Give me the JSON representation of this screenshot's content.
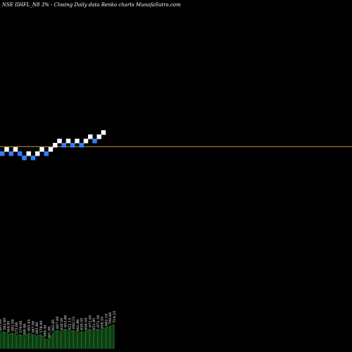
{
  "chart_data": {
    "type": "renko",
    "title": "NSE IIHFL_N8  3% -  Closing Daily data  Renko  charts MunafaSutra.com",
    "colors": {
      "up_brick": "#ffffff",
      "down_brick": "#2f7fff",
      "reference_line": "#c99a2e",
      "volume_bar": "#0d3b12",
      "volume_edge": "#1f7a2c",
      "background": "#000000"
    },
    "bricks": [
      {
        "dir": "down",
        "level": 0
      },
      {
        "dir": "up",
        "level": 1
      },
      {
        "dir": "down",
        "level": 0
      },
      {
        "dir": "up",
        "level": 1
      },
      {
        "dir": "down",
        "level": 0
      },
      {
        "dir": "down",
        "level": -1
      },
      {
        "dir": "up",
        "level": 0
      },
      {
        "dir": "down",
        "level": -1
      },
      {
        "dir": "up",
        "level": 0
      },
      {
        "dir": "up",
        "level": 1
      },
      {
        "dir": "down",
        "level": 0
      },
      {
        "dir": "up",
        "level": 1
      },
      {
        "dir": "up",
        "level": 2
      },
      {
        "dir": "up",
        "level": 3
      },
      {
        "dir": "down",
        "level": 2
      },
      {
        "dir": "up",
        "level": 3
      },
      {
        "dir": "down",
        "level": 2
      },
      {
        "dir": "up",
        "level": 3
      },
      {
        "dir": "down",
        "level": 2
      },
      {
        "dir": "up",
        "level": 3
      },
      {
        "dir": "up",
        "level": 4
      },
      {
        "dir": "down",
        "level": 3
      },
      {
        "dir": "up",
        "level": 4
      },
      {
        "dir": "up",
        "level": 5
      }
    ],
    "reference_level": 1.2,
    "volume_labels": [
      "561.00",
      "563.60",
      "564.95",
      "582.00",
      "575.00",
      "579.00",
      "599.90",
      "563.45",
      "567.00",
      "583.80",
      "578.90",
      "599.30",
      "561.00",
      "565.85",
      "607.00",
      "620.20",
      "653.80",
      "622.15",
      "642.15",
      "641.80",
      "630.55",
      "656.50",
      "672.05",
      "651.85",
      "672.30",
      "656.55",
      "682.10",
      "700.60",
      "714.25"
    ],
    "volume_values": [
      0.55,
      0.6,
      0.5,
      0.55,
      0.45,
      0.5,
      0.4,
      0.55,
      0.5,
      0.45,
      0.5,
      0.35,
      0.3,
      0.55,
      0.65,
      0.6,
      0.7,
      0.6,
      0.65,
      0.55,
      0.6,
      0.6,
      0.7,
      0.6,
      0.7,
      0.65,
      0.75,
      0.8,
      0.85
    ]
  }
}
